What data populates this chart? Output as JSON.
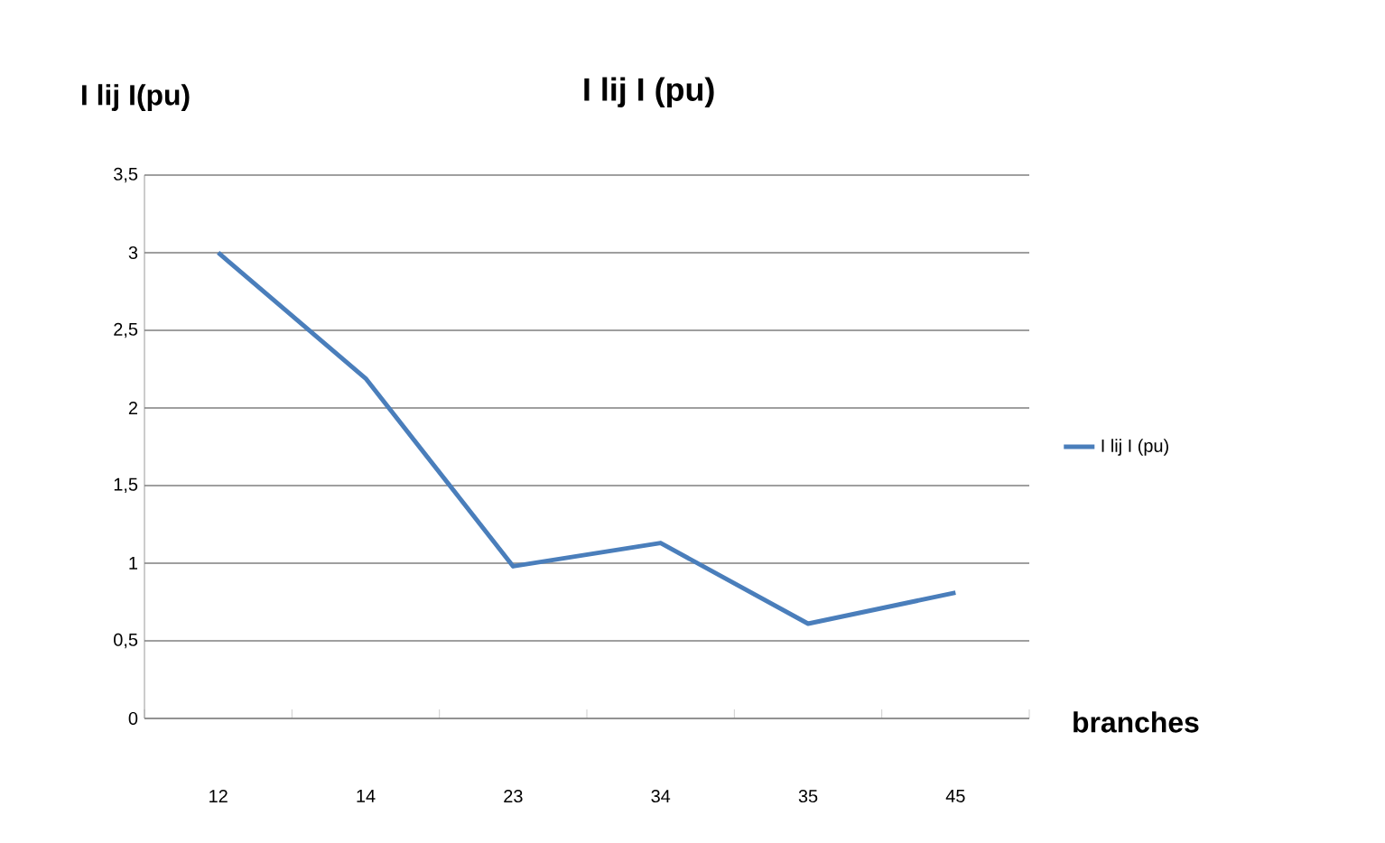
{
  "chart_data": {
    "type": "line",
    "title": "I  lij   I    (pu)",
    "ylabel": "I lij I(pu)",
    "xlabel": "branches",
    "categories": [
      "12",
      "14",
      "23",
      "34",
      "35",
      "45"
    ],
    "series": [
      {
        "name": "I  lij   I    (pu)",
        "color": "#4a7ebb",
        "values": [
          3.0,
          2.19,
          0.98,
          1.13,
          0.61,
          0.81
        ]
      }
    ],
    "ylim": [
      0,
      3.5
    ],
    "yticks": [
      {
        "value": 0,
        "label": "0"
      },
      {
        "value": 0.5,
        "label": "0,5"
      },
      {
        "value": 1,
        "label": "1"
      },
      {
        "value": 1.5,
        "label": "1,5"
      },
      {
        "value": 2,
        "label": "2"
      },
      {
        "value": 2.5,
        "label": "2,5"
      },
      {
        "value": 3,
        "label": "3"
      },
      {
        "value": 3.5,
        "label": "3,5"
      }
    ],
    "grid": "y",
    "legend": "right",
    "marker": "none",
    "line_style": "solid"
  }
}
